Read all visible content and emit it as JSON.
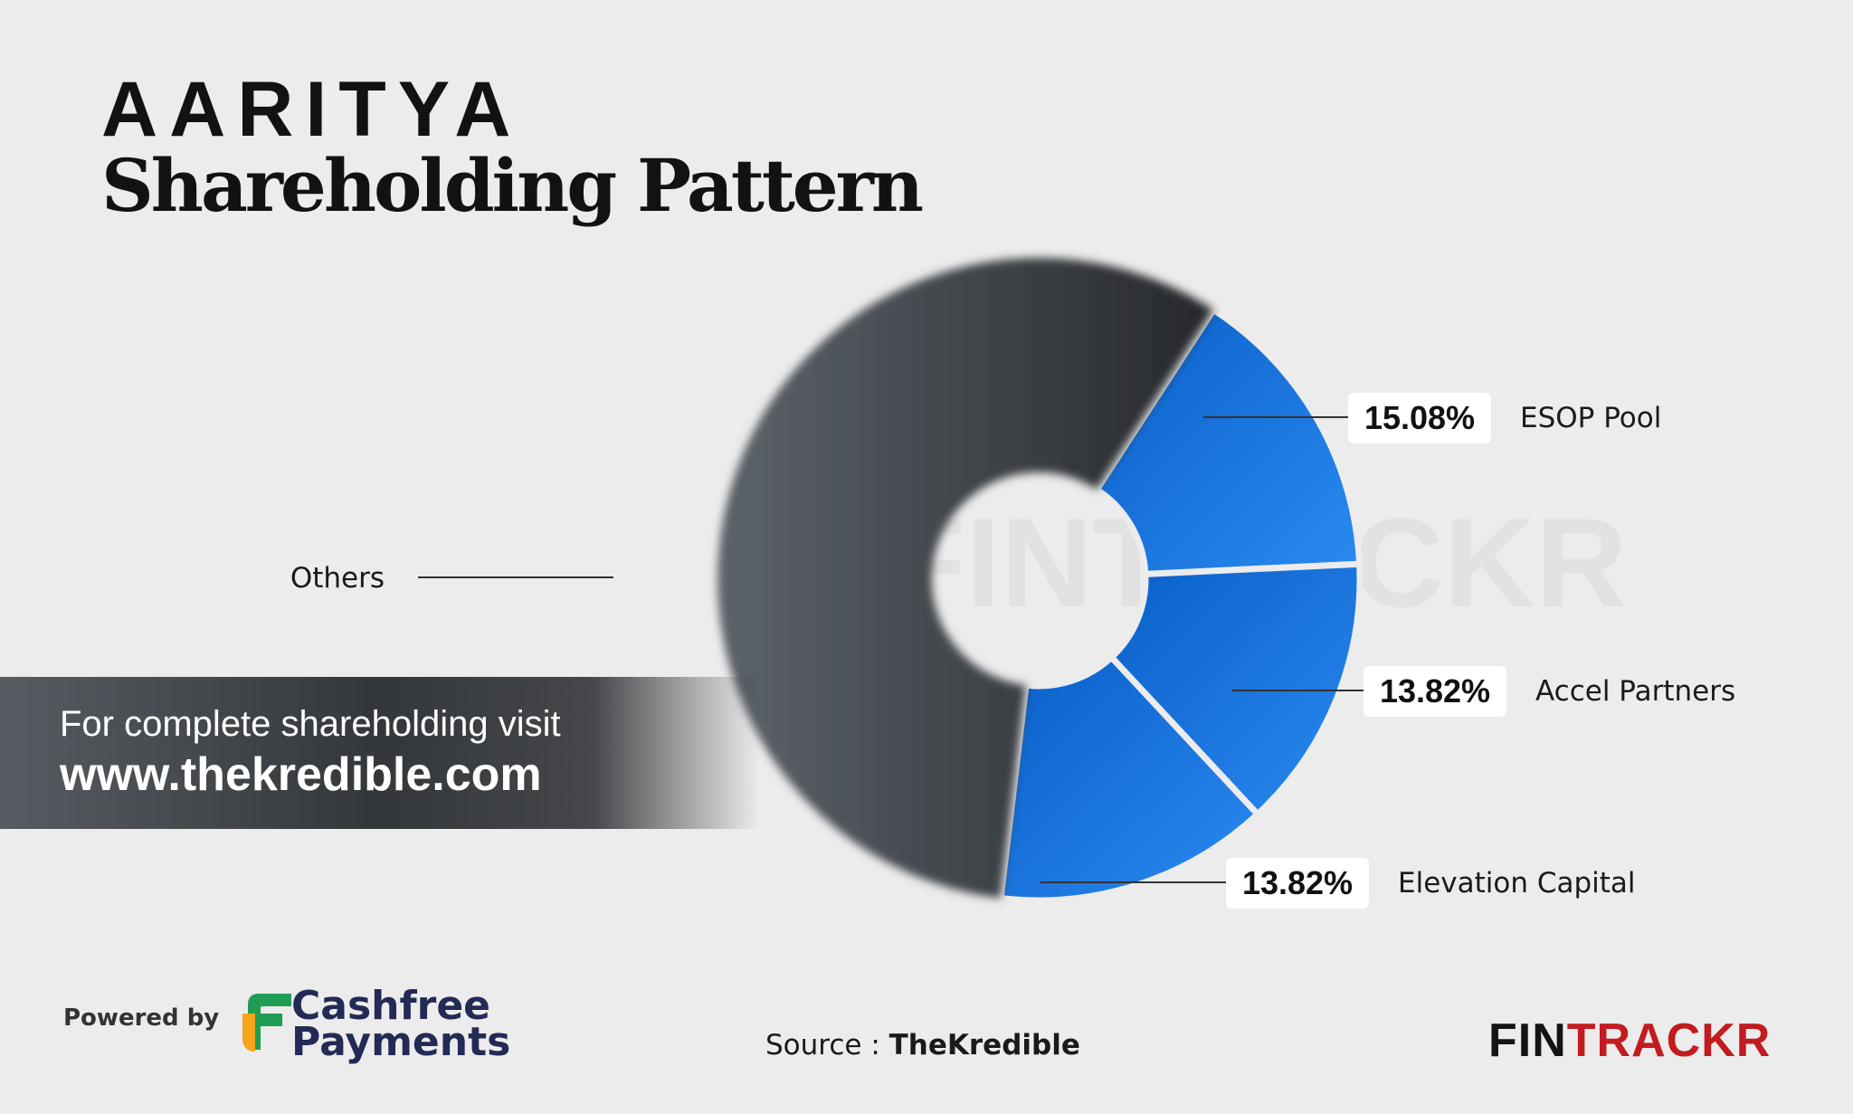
{
  "header": {
    "brand": "AARITYA",
    "title": "Shareholding Pattern"
  },
  "chart_data": {
    "type": "pie",
    "categories": [
      "ESOP Pool",
      "Accel Partners",
      "Elevation Capital",
      "Others"
    ],
    "values": [
      15.08,
      13.82,
      13.82,
      57.28
    ],
    "labels": [
      "15.08%",
      "13.82%",
      "13.82%",
      ""
    ],
    "title": "Shareholding Pattern",
    "legend": "none",
    "colors": {
      "investor": "#1673d8",
      "others": "#3b3f44"
    }
  },
  "watermark": "FINTRACKR",
  "visit_banner": {
    "line1": "For complete shareholding visit",
    "line2": "www.thekredible.com"
  },
  "footer": {
    "powered_by": "Powered by",
    "sponsor_line1": "Cashfree",
    "sponsor_line2": "Payments",
    "source_prefix": "Source : ",
    "source_name": "TheKredible",
    "logo_part1": "FIN",
    "logo_part2": "TRACKR"
  }
}
